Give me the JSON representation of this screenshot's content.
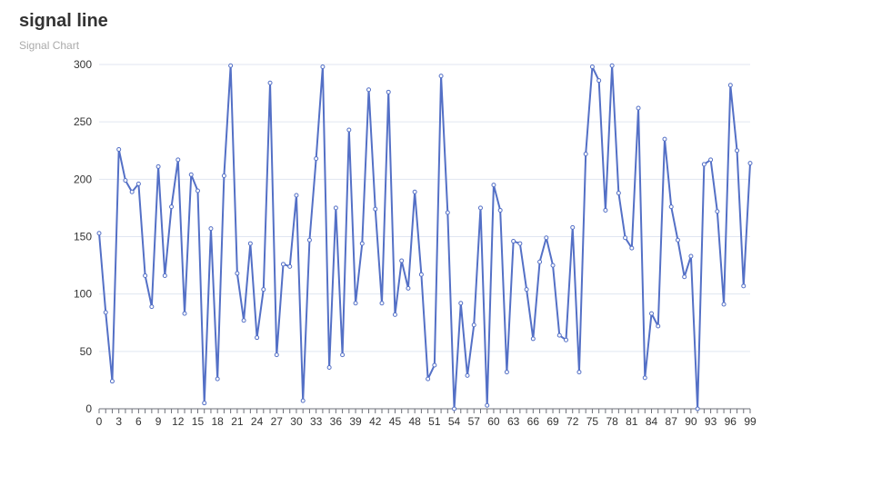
{
  "chart_data": {
    "type": "line",
    "title": "signal line",
    "subtitle": "Signal Chart",
    "xlabel": "",
    "ylabel": "",
    "ylim": [
      0,
      300
    ],
    "y_ticks": [
      0,
      50,
      100,
      150,
      200,
      250,
      300
    ],
    "x_ticks": [
      0,
      3,
      6,
      9,
      12,
      15,
      18,
      21,
      24,
      27,
      30,
      33,
      36,
      39,
      42,
      45,
      48,
      51,
      54,
      57,
      60,
      63,
      66,
      69,
      72,
      75,
      78,
      81,
      84,
      87,
      90,
      93,
      96,
      99
    ],
    "grid": true,
    "colors": {
      "line": "#5470c6",
      "grid": "#e0e6f1",
      "axis": "#6e7079"
    },
    "series": [
      {
        "x": [
          0,
          1,
          2,
          3,
          4,
          5,
          6,
          7,
          8,
          9,
          10,
          11,
          12,
          13,
          14,
          15,
          16,
          17,
          18,
          19,
          20,
          21,
          22,
          23,
          24,
          25,
          26,
          27,
          28,
          29,
          30,
          31,
          32,
          33,
          34,
          35,
          36,
          37,
          38,
          39,
          40,
          41,
          42,
          43,
          44,
          45,
          46,
          47,
          48,
          49,
          50,
          51,
          52,
          53,
          54,
          55,
          56,
          57,
          58,
          59,
          60,
          61,
          62,
          63,
          64,
          65,
          66,
          67,
          68,
          69,
          70,
          71,
          72,
          73,
          74,
          75,
          76,
          77,
          78,
          79,
          80,
          81,
          82,
          83,
          84,
          85,
          86,
          87,
          88,
          89,
          90,
          91,
          92,
          93,
          94,
          95,
          96,
          97,
          98,
          99
        ],
        "values": [
          153,
          84,
          24,
          226,
          199,
          189,
          196,
          116,
          89,
          211,
          116,
          176,
          217,
          83,
          204,
          190,
          5,
          157,
          26,
          203,
          299,
          118,
          77,
          144,
          62,
          104,
          284,
          47,
          126,
          124,
          186,
          7,
          147,
          218,
          298,
          36,
          175,
          47,
          243,
          92,
          144,
          278,
          174,
          92,
          276,
          82,
          129,
          105,
          189,
          117,
          26,
          38,
          290,
          171,
          0,
          92,
          29,
          73,
          175,
          3,
          195,
          173,
          32,
          146,
          144,
          104,
          61,
          128,
          149,
          125,
          64,
          60,
          158,
          32,
          222,
          298,
          286,
          173,
          299,
          188,
          149,
          140,
          262,
          27,
          83,
          72,
          235,
          176,
          147,
          115,
          133,
          0,
          213,
          217,
          172,
          91,
          282,
          225,
          107,
          214
        ]
      }
    ]
  }
}
